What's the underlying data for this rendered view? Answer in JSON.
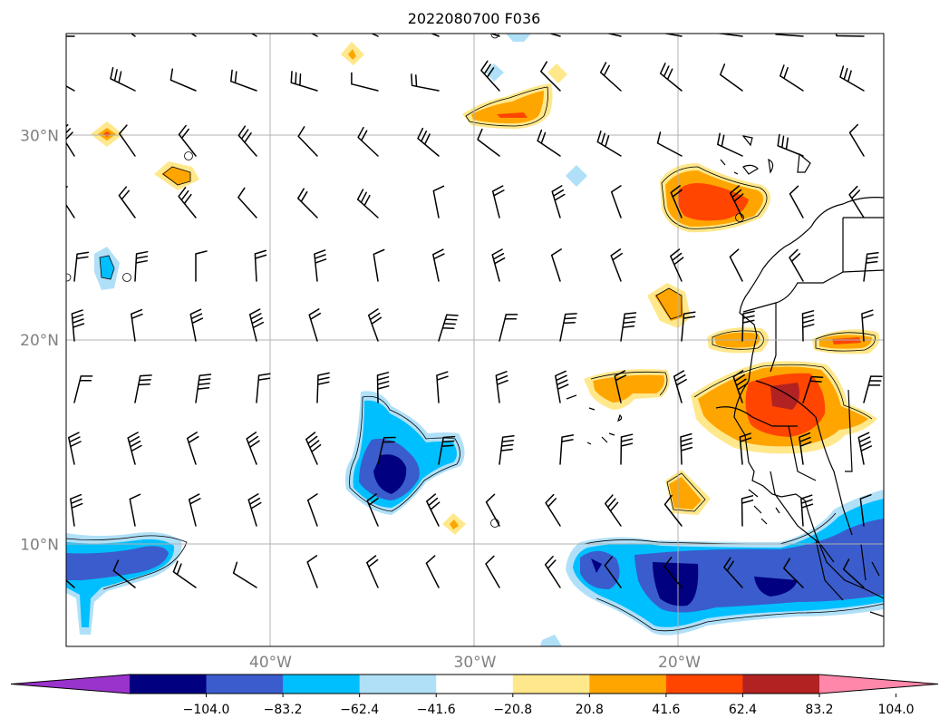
{
  "title": "2022080700 F036",
  "lat_labels": [
    {
      "lat": 30,
      "text": "30°N"
    },
    {
      "lat": 20,
      "text": "20°N"
    },
    {
      "lat": 10,
      "text": "10°N"
    }
  ],
  "lon_labels": [
    {
      "lon": -40,
      "text": "40°W"
    },
    {
      "lon": -30,
      "text": "30°W"
    },
    {
      "lon": -20,
      "text": "20°W"
    }
  ],
  "extent": {
    "lon_min": -50,
    "lon_max": -10,
    "lat_min": 5,
    "lat_max": 35
  },
  "colorbar": {
    "ticks": [
      "−104.0",
      "−83.2",
      "−62.4",
      "−41.6",
      "−20.8",
      "20.8",
      "41.6",
      "62.4",
      "83.2",
      "104.0"
    ],
    "colors": [
      "#9933cc",
      "#000080",
      "#3a5ccc",
      "#00bfff",
      "#b0e0f8",
      "#ffffff",
      "#ffe88c",
      "#ffa500",
      "#ff4500",
      "#b22222",
      "#ff88aa"
    ],
    "extend": "both"
  },
  "colors": {
    "label_gray": "#808080",
    "grid": "#b0b0b0",
    "coast": "#000000"
  }
}
